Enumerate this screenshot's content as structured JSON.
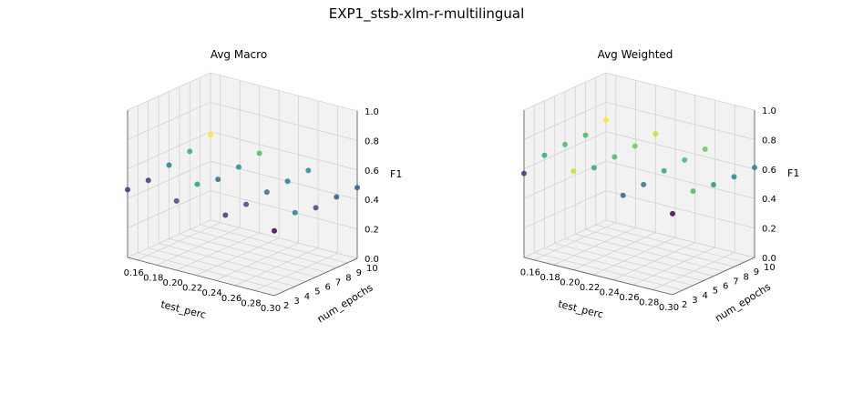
{
  "figure_title": "EXP1_stsb-xlm-r-multilingual",
  "chart_data": [
    {
      "type": "scatter3d",
      "title": "Avg Macro",
      "xlabel": "test_perc",
      "ylabel": "num_epochs",
      "zlabel": "F1",
      "xlim": [
        0.15,
        0.3
      ],
      "ylim": [
        2,
        10
      ],
      "zlim": [
        0,
        1
      ],
      "x_ticks": [
        "0.16",
        "0.18",
        "0.20",
        "0.22",
        "0.24",
        "0.26",
        "0.28",
        "0.30"
      ],
      "y_ticks": [
        "2",
        "3",
        "4",
        "5",
        "6",
        "7",
        "8",
        "9",
        "10"
      ],
      "z_ticks": [
        "0.0",
        "0.2",
        "0.4",
        "0.6",
        "0.8",
        "1.0"
      ],
      "colormap": "viridis",
      "points": [
        {
          "x": 0.15,
          "y": 2,
          "z": 0.46
        },
        {
          "x": 0.15,
          "y": 4,
          "z": 0.46
        },
        {
          "x": 0.15,
          "y": 6,
          "z": 0.5
        },
        {
          "x": 0.15,
          "y": 8,
          "z": 0.53
        },
        {
          "x": 0.15,
          "y": 10,
          "z": 0.58
        },
        {
          "x": 0.2,
          "y": 2,
          "z": 0.47
        },
        {
          "x": 0.2,
          "y": 4,
          "z": 0.52
        },
        {
          "x": 0.2,
          "y": 6,
          "z": 0.49
        },
        {
          "x": 0.2,
          "y": 8,
          "z": 0.51
        },
        {
          "x": 0.2,
          "y": 10,
          "z": 0.54
        },
        {
          "x": 0.25,
          "y": 2,
          "z": 0.46
        },
        {
          "x": 0.25,
          "y": 4,
          "z": 0.47
        },
        {
          "x": 0.25,
          "y": 6,
          "z": 0.49
        },
        {
          "x": 0.25,
          "y": 8,
          "z": 0.5
        },
        {
          "x": 0.25,
          "y": 10,
          "z": 0.51
        },
        {
          "x": 0.3,
          "y": 2,
          "z": 0.44
        },
        {
          "x": 0.3,
          "y": 4,
          "z": 0.5
        },
        {
          "x": 0.3,
          "y": 6,
          "z": 0.47
        },
        {
          "x": 0.3,
          "y": 8,
          "z": 0.48
        },
        {
          "x": 0.3,
          "y": 10,
          "z": 0.48
        }
      ]
    },
    {
      "type": "scatter3d",
      "title": "Avg Weighted",
      "xlabel": "test_perc",
      "ylabel": "num_epochs",
      "zlabel": "F1",
      "xlim": [
        0.15,
        0.3
      ],
      "ylim": [
        2,
        10
      ],
      "zlim": [
        0,
        1
      ],
      "x_ticks": [
        "0.16",
        "0.18",
        "0.20",
        "0.22",
        "0.24",
        "0.26",
        "0.28",
        "0.30"
      ],
      "y_ticks": [
        "2",
        "3",
        "4",
        "5",
        "6",
        "7",
        "8",
        "9",
        "10"
      ],
      "z_ticks": [
        "0.0",
        "0.2",
        "0.4",
        "0.6",
        "0.8",
        "1.0"
      ],
      "colormap": "viridis",
      "points": [
        {
          "x": 0.15,
          "y": 2,
          "z": 0.57
        },
        {
          "x": 0.15,
          "y": 4,
          "z": 0.63
        },
        {
          "x": 0.15,
          "y": 6,
          "z": 0.64
        },
        {
          "x": 0.15,
          "y": 8,
          "z": 0.64
        },
        {
          "x": 0.15,
          "y": 10,
          "z": 0.68
        },
        {
          "x": 0.2,
          "y": 2,
          "z": 0.67
        },
        {
          "x": 0.2,
          "y": 4,
          "z": 0.63
        },
        {
          "x": 0.2,
          "y": 6,
          "z": 0.64
        },
        {
          "x": 0.2,
          "y": 8,
          "z": 0.65
        },
        {
          "x": 0.2,
          "y": 10,
          "z": 0.67
        },
        {
          "x": 0.25,
          "y": 2,
          "z": 0.59
        },
        {
          "x": 0.25,
          "y": 4,
          "z": 0.6
        },
        {
          "x": 0.25,
          "y": 6,
          "z": 0.63
        },
        {
          "x": 0.25,
          "y": 8,
          "z": 0.64
        },
        {
          "x": 0.25,
          "y": 10,
          "z": 0.65
        },
        {
          "x": 0.3,
          "y": 2,
          "z": 0.55
        },
        {
          "x": 0.3,
          "y": 4,
          "z": 0.64
        },
        {
          "x": 0.3,
          "y": 6,
          "z": 0.62
        },
        {
          "x": 0.3,
          "y": 8,
          "z": 0.61
        },
        {
          "x": 0.3,
          "y": 10,
          "z": 0.61
        }
      ]
    }
  ]
}
